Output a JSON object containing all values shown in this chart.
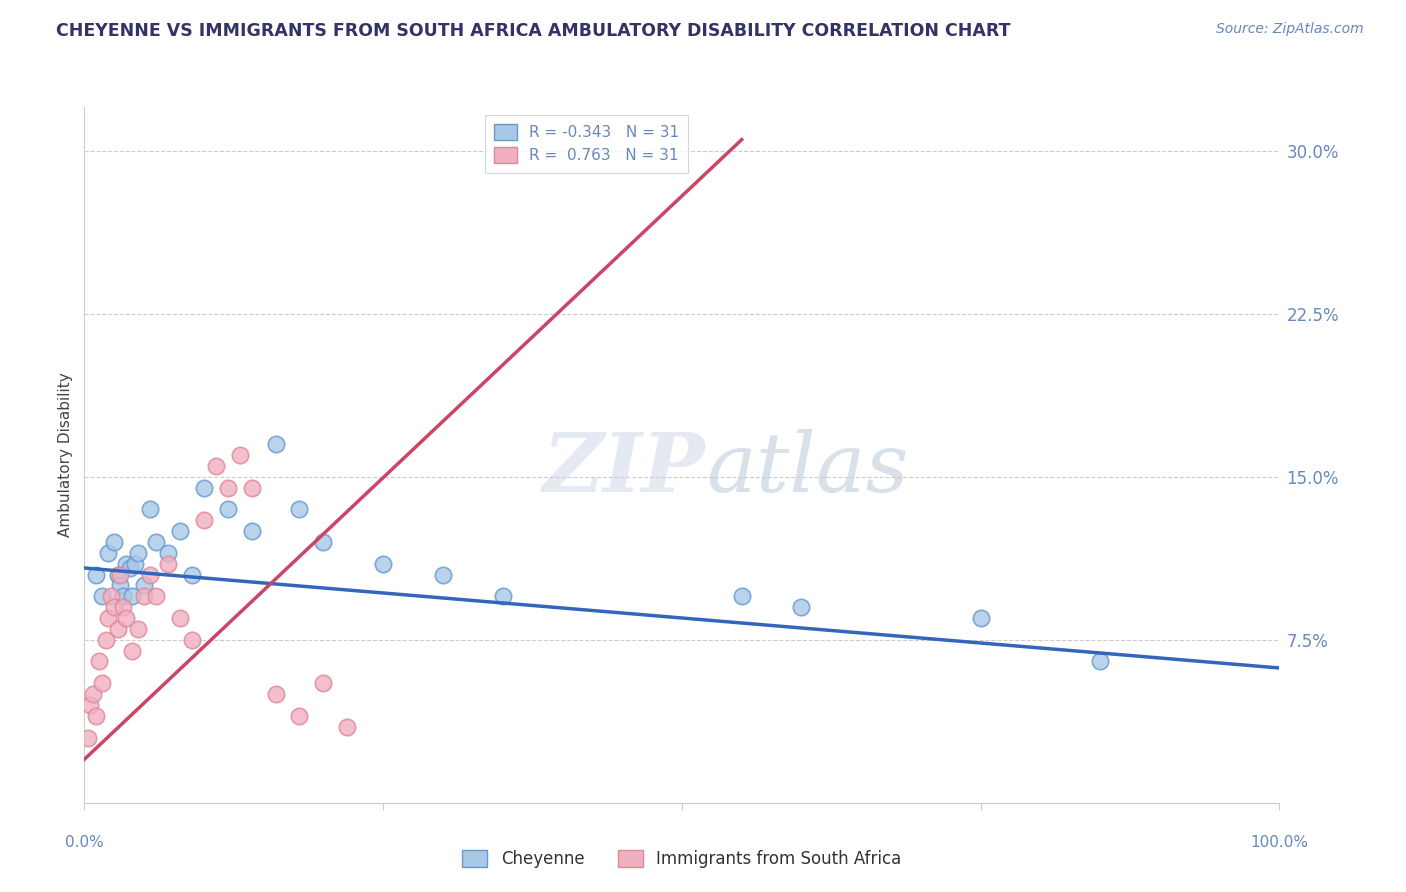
{
  "title": "CHEYENNE VS IMMIGRANTS FROM SOUTH AFRICA AMBULATORY DISABILITY CORRELATION CHART",
  "source": "Source: ZipAtlas.com",
  "ylabel": "Ambulatory Disability",
  "xlim": [
    0,
    100
  ],
  "ylim": [
    0,
    32
  ],
  "yticks": [
    7.5,
    15.0,
    22.5,
    30.0
  ],
  "ytick_labels": [
    "7.5%",
    "15.0%",
    "22.5%",
    "30.0%"
  ],
  "xtick_positions": [
    0,
    25,
    50,
    75,
    100
  ],
  "cheyenne_color": "#A8C8E8",
  "cheyenne_edge": "#6699CC",
  "immigrants_color": "#F0B0C0",
  "immigrants_edge": "#DD8899",
  "cheyenne_R": -0.343,
  "cheyenne_N": 31,
  "immigrants_R": 0.763,
  "immigrants_N": 31,
  "trend_blue": "#3366BB",
  "trend_pink": "#CC4466",
  "watermark_zip": "ZIP",
  "watermark_atlas": "atlas",
  "bg_color": "#FFFFFF",
  "grid_color": "#CCCCCC",
  "spine_color": "#CCCCCC",
  "title_color": "#333366",
  "source_color": "#6688BB",
  "ytick_color": "#6688BB",
  "cheyenne_label": "Cheyenne",
  "immigrants_label": "Immigrants from South Africa",
  "cheyenne_x": [
    1.0,
    1.5,
    2.0,
    2.5,
    2.8,
    3.0,
    3.2,
    3.5,
    3.8,
    4.0,
    4.2,
    4.5,
    5.0,
    5.5,
    6.0,
    7.0,
    8.0,
    9.0,
    10.0,
    12.0,
    14.0,
    16.0,
    18.0,
    20.0,
    25.0,
    30.0,
    35.0,
    55.0,
    60.0,
    75.0,
    85.0
  ],
  "cheyenne_y": [
    10.5,
    9.5,
    11.5,
    12.0,
    10.5,
    10.0,
    9.5,
    11.0,
    10.8,
    9.5,
    11.0,
    11.5,
    10.0,
    13.5,
    12.0,
    11.5,
    12.5,
    10.5,
    14.5,
    13.5,
    12.5,
    16.5,
    13.5,
    12.0,
    11.0,
    10.5,
    9.5,
    9.5,
    9.0,
    8.5,
    6.5
  ],
  "immigrants_x": [
    0.3,
    0.5,
    0.7,
    1.0,
    1.2,
    1.5,
    1.8,
    2.0,
    2.2,
    2.5,
    2.8,
    3.0,
    3.2,
    3.5,
    4.0,
    4.5,
    5.0,
    5.5,
    6.0,
    7.0,
    8.0,
    9.0,
    10.0,
    11.0,
    12.0,
    13.0,
    14.0,
    16.0,
    18.0,
    20.0,
    22.0
  ],
  "immigrants_y": [
    3.0,
    4.5,
    5.0,
    4.0,
    6.5,
    5.5,
    7.5,
    8.5,
    9.5,
    9.0,
    8.0,
    10.5,
    9.0,
    8.5,
    7.0,
    8.0,
    9.5,
    10.5,
    9.5,
    11.0,
    8.5,
    7.5,
    13.0,
    15.5,
    14.5,
    16.0,
    14.5,
    5.0,
    4.0,
    5.5,
    3.5
  ],
  "trend_blue_x0": 0,
  "trend_blue_y0": 10.8,
  "trend_blue_x1": 100,
  "trend_blue_y1": 6.2,
  "trend_pink_x0": 0,
  "trend_pink_y0": 2.0,
  "trend_pink_x1": 55,
  "trend_pink_y1": 30.5
}
